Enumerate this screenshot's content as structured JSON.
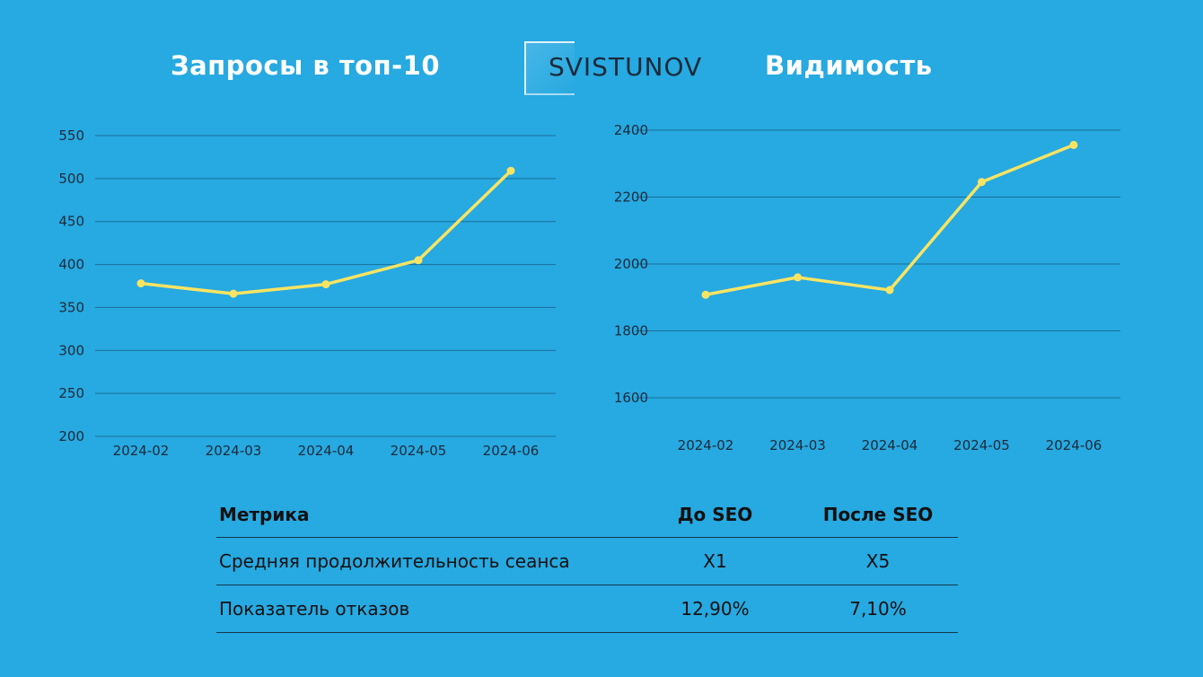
{
  "header": {
    "left_title": "Запросы в топ-10",
    "right_title": "Видимость",
    "logo_text": "SVISTUNOV"
  },
  "colors": {
    "background": "#27a9e1",
    "line": "#f9e462",
    "grid": "#1a6e99",
    "text": "#1d2b3a"
  },
  "chart_data": [
    {
      "type": "line",
      "title": "Запросы в топ-10",
      "categories": [
        "2024-02",
        "2024-03",
        "2024-04",
        "2024-05",
        "2024-06"
      ],
      "series": [
        {
          "values": [
            378,
            366,
            377,
            405,
            509
          ]
        }
      ],
      "ylim": [
        200,
        550
      ],
      "yticks": [
        200,
        250,
        300,
        350,
        400,
        450,
        500,
        550
      ],
      "ytick_labels": [
        "200",
        "250",
        "300",
        "350",
        "400",
        "450",
        "500",
        "550"
      ],
      "grid": true
    },
    {
      "type": "line",
      "title": "Видимость",
      "categories": [
        "2024-02",
        "2024-03",
        "2024-04",
        "2024-05",
        "2024-06"
      ],
      "series": [
        {
          "values": [
            1908,
            1960,
            1922,
            2245,
            2356
          ]
        }
      ],
      "ylim": [
        1600,
        2400
      ],
      "yticks": [
        1600,
        1800,
        2000,
        2200,
        2400
      ],
      "ytick_labels": [
        "1600",
        "1800",
        "2000",
        "2200",
        "2400"
      ],
      "grid": true
    }
  ],
  "table": {
    "headers": [
      "Метрика",
      "До SEO",
      "После SEO"
    ],
    "rows": [
      [
        "Средняя продолжительность сеанса",
        "X1",
        "X5"
      ],
      [
        "Показатель отказов",
        "12,90%",
        "7,10%"
      ]
    ]
  }
}
